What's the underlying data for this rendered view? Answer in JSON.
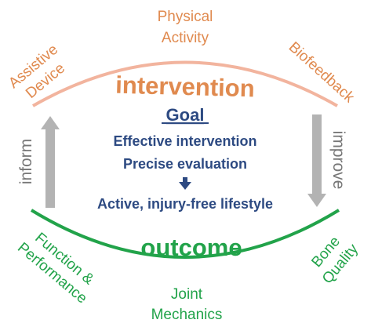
{
  "colors": {
    "orange": "#e08a4f",
    "arc_top": "#f2b49e",
    "green": "#22a34a",
    "navy": "#2d4a82",
    "gray_arrow": "#b3b3b3",
    "gray_text": "#777777"
  },
  "top": {
    "physical_activity_line1": "Physical",
    "physical_activity_line2": "Activity",
    "assistive_device_line1": "Assistive",
    "assistive_device_line2": "Device",
    "biofeedback": "Biofeedback",
    "intervention": "intervention"
  },
  "center": {
    "goal": "Goal",
    "line1": "Effective intervention",
    "line2": "Precise evaluation",
    "line3": "Active, injury-free  lifestyle"
  },
  "sides": {
    "inform": "inform",
    "improve": "improve"
  },
  "bottom": {
    "outcome": "outcome",
    "function_line1": "Function &",
    "function_line2": "Performance",
    "joint_line1": "Joint",
    "joint_line2": "Mechanics",
    "bone_line1": "Bone",
    "bone_line2": "Quality"
  }
}
